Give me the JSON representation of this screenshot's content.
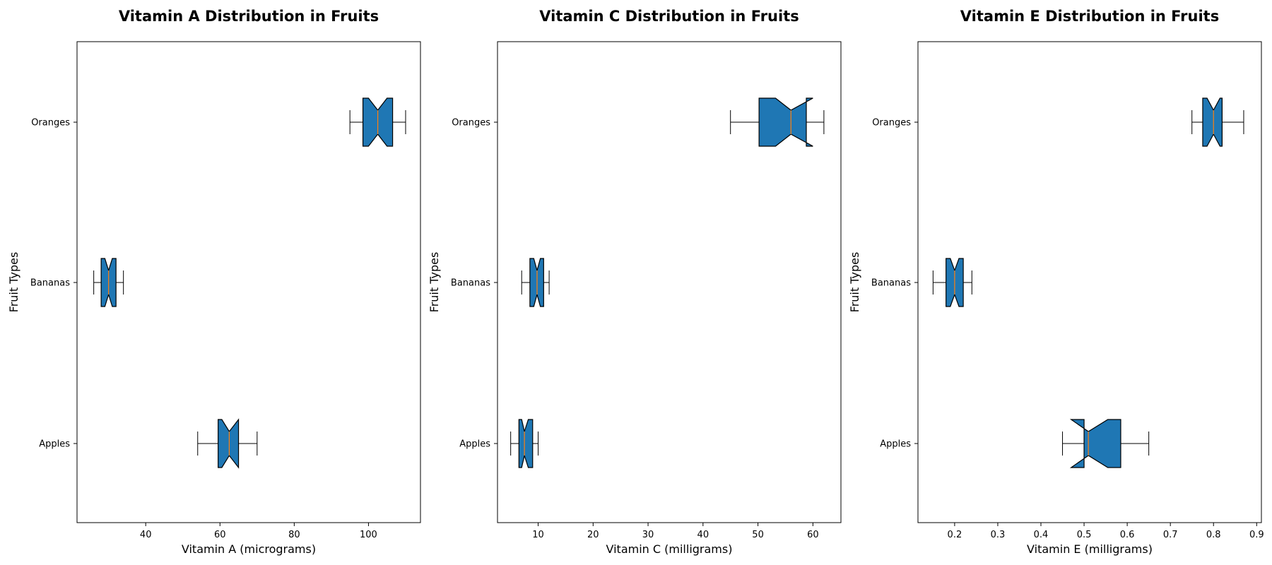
{
  "colors": {
    "box_fill": "#1f77b4",
    "median": "#ff7f0e",
    "line": "#000000",
    "background": "#ffffff"
  },
  "chart_data": [
    {
      "type": "boxplot",
      "orientation": "horizontal",
      "notched": true,
      "title": "Vitamin A Distribution in Fruits",
      "xlabel": "Vitamin A (micrograms)",
      "ylabel": "Fruit Types",
      "categories": [
        "Apples",
        "Bananas",
        "Oranges"
      ],
      "xlim": [
        21.5,
        114
      ],
      "xticks": [
        40,
        60,
        80,
        100
      ],
      "grid": false,
      "boxes": [
        {
          "category": "Apples",
          "whisker_low": 54,
          "q1": 59.5,
          "notch_low": 60.5,
          "median": 62.5,
          "notch_high": 65,
          "q3": 65,
          "whisker_high": 70
        },
        {
          "category": "Bananas",
          "whisker_low": 26,
          "q1": 28,
          "notch_low": 29,
          "median": 30,
          "notch_high": 31,
          "q3": 32,
          "whisker_high": 34
        },
        {
          "category": "Oranges",
          "whisker_low": 95,
          "q1": 98.5,
          "notch_low": 100,
          "median": 102.5,
          "notch_high": 105,
          "q3": 106.5,
          "whisker_high": 110
        }
      ]
    },
    {
      "type": "boxplot",
      "orientation": "horizontal",
      "notched": true,
      "title": "Vitamin C Distribution in Fruits",
      "xlabel": "Vitamin C (milligrams)",
      "ylabel": "Fruit Types",
      "categories": [
        "Apples",
        "Bananas",
        "Oranges"
      ],
      "xlim": [
        2.6,
        65.1
      ],
      "xticks": [
        10,
        20,
        30,
        40,
        50,
        60
      ],
      "grid": false,
      "boxes": [
        {
          "category": "Apples",
          "whisker_low": 5,
          "q1": 6.5,
          "notch_low": 7,
          "median": 7.5,
          "notch_high": 8.2,
          "q3": 9,
          "whisker_high": 10
        },
        {
          "category": "Bananas",
          "whisker_low": 7,
          "q1": 8.5,
          "notch_low": 9.2,
          "median": 9.8,
          "notch_high": 10.4,
          "q3": 11,
          "whisker_high": 12
        },
        {
          "category": "Oranges",
          "whisker_low": 45,
          "q1": 50.2,
          "notch_low": 53.2,
          "median": 56,
          "notch_high": 60,
          "q3": 58.8,
          "whisker_high": 62
        }
      ]
    },
    {
      "type": "boxplot",
      "orientation": "horizontal",
      "notched": true,
      "title": "Vitamin E Distribution in Fruits",
      "xlabel": "Vitamin E (milligrams)",
      "ylabel": "Fruit Types",
      "categories": [
        "Apples",
        "Bananas",
        "Oranges"
      ],
      "xlim": [
        0.115,
        0.911
      ],
      "xticks": [
        0.2,
        0.3,
        0.4,
        0.5,
        0.6,
        0.7,
        0.8,
        0.9
      ],
      "xtick_labels": [
        "0.2",
        "0.3",
        "0.4",
        "0.5",
        "0.6",
        "0.7",
        "0.8",
        "0.9"
      ],
      "grid": false,
      "boxes": [
        {
          "category": "Apples",
          "whisker_low": 0.45,
          "q1": 0.5,
          "notch_low": 0.47,
          "median": 0.51,
          "notch_high": 0.555,
          "q3": 0.585,
          "whisker_high": 0.65
        },
        {
          "category": "Bananas",
          "whisker_low": 0.15,
          "q1": 0.18,
          "notch_low": 0.19,
          "median": 0.2,
          "notch_high": 0.21,
          "q3": 0.22,
          "whisker_high": 0.24
        },
        {
          "category": "Oranges",
          "whisker_low": 0.75,
          "q1": 0.775,
          "notch_low": 0.785,
          "median": 0.8,
          "notch_high": 0.815,
          "q3": 0.82,
          "whisker_high": 0.87
        }
      ]
    }
  ]
}
